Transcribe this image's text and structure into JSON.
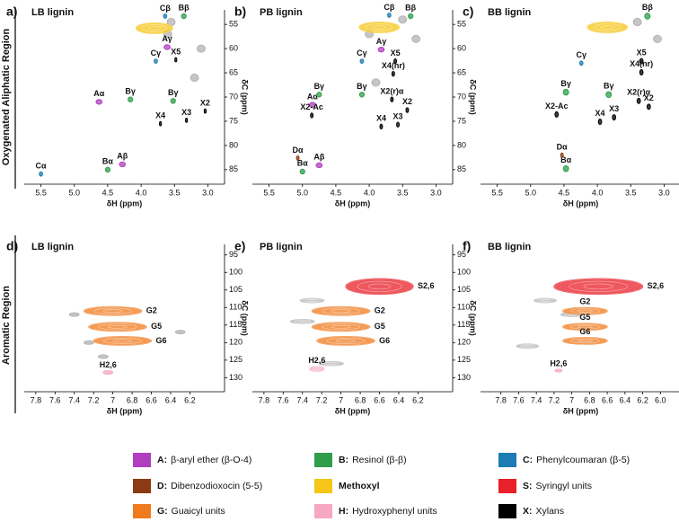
{
  "row_labels": [
    "Oxygenated Aliphatic Region",
    "Aromatic Region"
  ],
  "chart_data": [
    {
      "type": "scatter",
      "label": "a)",
      "title": "LB lignin",
      "xlabel": "δH (ppm)",
      "ylabel": "δC (ppm)",
      "xlim": [
        5.75,
        2.75
      ],
      "ylim": [
        52,
        88
      ],
      "xticks": [
        5.5,
        {
          "value": 5,
          "label": "5.0"
        },
        4.5,
        {
          "value": 4,
          "label": "4.0"
        },
        3.5,
        {
          "value": 3,
          "label": "3.0"
        }
      ],
      "yticks": [
        55,
        60,
        65,
        70,
        75,
        80,
        85
      ],
      "series": [
        {
          "color": "#b3b3b3",
          "x": [
            3.55,
            3.1,
            3.2,
            3.6
          ],
          "values": [
            54.5,
            60,
            66,
            57
          ],
          "extent": [
            0.12,
            1.5
          ]
        },
        {
          "color": "#f5c518",
          "x": [
            3.8
          ],
          "values": [
            55.8
          ],
          "extent": [
            0.55,
            2.2
          ]
        },
        {
          "color": "#b03fc0",
          "x": [
            4.63,
            3.61,
            4.28
          ],
          "values": [
            71.0,
            59.7,
            83.9
          ],
          "labels": [
            "Aα",
            "Aγ",
            "Aβ"
          ],
          "extent": [
            0.09,
            1.0
          ]
        },
        {
          "color": "#2e9e4a",
          "x": [
            3.36,
            4.16,
            3.52,
            4.5
          ],
          "values": [
            53.3,
            70.5,
            70.8,
            85.0
          ],
          "labels": [
            "Bβ",
            "Bγ",
            "Bγ",
            "Bα"
          ],
          "extent": [
            0.07,
            1.0
          ]
        },
        {
          "color": "#1f7bb5",
          "x": [
            3.64,
            3.78,
            5.5
          ],
          "values": [
            53.3,
            62.6,
            85.9
          ],
          "labels": [
            "Cβ",
            "Cγ",
            "Cα"
          ],
          "extent": [
            0.05,
            0.9
          ]
        },
        {
          "color": "#000000",
          "x": [
            3.48,
            3.04,
            3.32,
            3.71
          ],
          "values": [
            62.3,
            72.9,
            74.8,
            75.5
          ],
          "labels": [
            "X5",
            "X2",
            "X3",
            "X4"
          ],
          "extent": [
            0.03,
            0.9
          ]
        }
      ]
    },
    {
      "type": "scatter",
      "label": "b)",
      "title": "PB lignin",
      "xlabel": "δH (ppm)",
      "ylabel": "δC (ppm)",
      "xlim": [
        5.75,
        2.75
      ],
      "ylim": [
        52,
        88
      ],
      "xticks": [
        5.5,
        {
          "value": 5,
          "label": "5.0"
        },
        4.5,
        {
          "value": 4,
          "label": "4.0"
        },
        3.5,
        {
          "value": 3,
          "label": "3.0"
        }
      ],
      "yticks": [
        55,
        60,
        65,
        70,
        75,
        80,
        85
      ],
      "series": [
        {
          "color": "#b3b3b3",
          "x": [
            3.5,
            3.3,
            4.0,
            3.9
          ],
          "values": [
            54,
            58,
            57,
            67
          ],
          "extent": [
            0.12,
            1.5
          ]
        },
        {
          "color": "#f5c518",
          "x": [
            3.85
          ],
          "values": [
            55.6
          ],
          "extent": [
            0.6,
            2.2
          ]
        },
        {
          "color": "#b03fc0",
          "x": [
            4.85,
            3.82,
            4.75
          ],
          "values": [
            71.6,
            60.2,
            84.1
          ],
          "labels": [
            "Aα",
            "Aγ",
            "Aβ"
          ],
          "extent": [
            0.09,
            1.0
          ]
        },
        {
          "color": "#2e9e4a",
          "x": [
            3.38,
            4.75,
            4.11,
            5.0
          ],
          "values": [
            53.3,
            69.5,
            69.5,
            85.4
          ],
          "labels": [
            "Bβ",
            "Bγ",
            "Bγ",
            "Bα"
          ],
          "extent": [
            0.07,
            1.0
          ]
        },
        {
          "color": "#1f7bb5",
          "x": [
            3.7,
            4.11
          ],
          "values": [
            53.1,
            62.6
          ],
          "labels": [
            "Cβ",
            "Cγ"
          ],
          "extent": [
            0.05,
            0.9
          ]
        },
        {
          "color": "#8b3a12",
          "x": [
            5.07
          ],
          "values": [
            82.6
          ],
          "labels": [
            "Dα"
          ],
          "extent": [
            0.04,
            0.9
          ]
        },
        {
          "color": "#000000",
          "x": [
            3.61,
            3.64,
            3.66,
            4.86,
            3.43,
            3.57,
            3.82
          ],
          "values": [
            62.6,
            65.2,
            70.5,
            73.8,
            72.7,
            75.7,
            76.1
          ],
          "labels": [
            "X5",
            "X4(nr)",
            "X2(r)α",
            "X2-Ac",
            "X2",
            "X3",
            "X4"
          ],
          "extent": [
            0.04,
            1.0
          ]
        }
      ]
    },
    {
      "type": "scatter",
      "label": "c)",
      "title": "BB lignin",
      "xlabel": "δH (ppm)",
      "ylabel": "δC (ppm)",
      "xlim": [
        5.75,
        2.75
      ],
      "ylim": [
        52,
        88
      ],
      "xticks": [
        5.5,
        {
          "value": 5,
          "label": "5.0"
        },
        4.5,
        {
          "value": 4,
          "label": "4.0"
        },
        3.5,
        {
          "value": 3,
          "label": "3.0"
        }
      ],
      "yticks": [
        55,
        60,
        65,
        70,
        75,
        80,
        85
      ],
      "series": [
        {
          "color": "#b3b3b3",
          "x": [
            3.4,
            3.1
          ],
          "values": [
            54.5,
            58
          ],
          "extent": [
            0.12,
            1.5
          ]
        },
        {
          "color": "#f5c518",
          "x": [
            3.85
          ],
          "values": [
            55.6
          ],
          "extent": [
            0.6,
            2.2
          ]
        },
        {
          "color": "#2e9e4a",
          "x": [
            3.25,
            4.47,
            3.83,
            4.47
          ],
          "values": [
            53.3,
            69.0,
            69.5,
            84.8
          ],
          "labels": [
            "Bβ",
            "Bγ",
            "Bγ",
            "Bα"
          ],
          "extent": [
            0.08,
            1.2
          ]
        },
        {
          "color": "#1f7bb5",
          "x": [
            4.24
          ],
          "values": [
            63
          ],
          "labels": [
            "Cγ"
          ],
          "extent": [
            0.05,
            0.9
          ]
        },
        {
          "color": "#8b3a12",
          "x": [
            4.53
          ],
          "values": [
            82
          ],
          "labels": [
            "Dα"
          ],
          "extent": [
            0.04,
            0.9
          ]
        },
        {
          "color": "#000000",
          "x": [
            3.34,
            3.34,
            3.38,
            4.61,
            3.23,
            3.75,
            3.96
          ],
          "values": [
            62.6,
            64.9,
            70.8,
            73.6,
            72.0,
            74.2,
            75.1
          ],
          "labels": [
            "X5",
            "X4(nr)",
            "X2(r)α",
            "X2-Ac",
            "X2",
            "X3",
            "X4"
          ],
          "extent": [
            0.05,
            1.1
          ]
        }
      ]
    },
    {
      "type": "scatter",
      "label": "d)",
      "title": "LB lignin",
      "xlabel": "δH (ppm)",
      "ylabel": "δC (ppm)",
      "xlim": [
        7.92,
        5.84
      ],
      "ylim": [
        92,
        134
      ],
      "xticks": [
        7.8,
        7.6,
        7.4,
        7.2,
        7,
        6.8,
        6.6,
        6.4,
        6.2
      ],
      "yticks": [
        95,
        100,
        105,
        110,
        115,
        120,
        125,
        130
      ],
      "series": [
        {
          "color": "#b3b3b3",
          "x": [
            7.4,
            7.25,
            7.1,
            6.3
          ],
          "values": [
            112,
            120,
            124,
            117
          ],
          "extent": [
            0.1,
            1.0
          ]
        },
        {
          "color": "#f07a1e",
          "x": [
            7.0,
            6.95,
            6.9
          ],
          "values": [
            111,
            115.5,
            119.5
          ],
          "labels": [
            "G2",
            "G5",
            "G6"
          ],
          "extent": [
            0.6,
            2.5
          ]
        },
        {
          "color": "#f6a8c0",
          "x": [
            7.05
          ],
          "values": [
            128.5
          ],
          "labels": [
            "H2,6"
          ],
          "extent": [
            0.1,
            1.0
          ]
        }
      ]
    },
    {
      "type": "scatter",
      "label": "e)",
      "title": "PB lignin",
      "xlabel": "δH (ppm)",
      "ylabel": "δC (ppm)",
      "xlim": [
        7.92,
        5.84
      ],
      "ylim": [
        92,
        134
      ],
      "xticks": [
        7.8,
        7.6,
        7.4,
        7.2,
        7,
        6.8,
        6.6,
        6.4,
        6.2
      ],
      "yticks": [
        95,
        100,
        105,
        110,
        115,
        120,
        125,
        130
      ],
      "series": [
        {
          "color": "#b3b3b3",
          "x": [
            7.3,
            7.1,
            7.4
          ],
          "values": [
            108,
            126,
            114
          ],
          "extent": [
            0.25,
            1.2
          ]
        },
        {
          "color": "#e8202a",
          "x": [
            6.6
          ],
          "values": [
            104
          ],
          "labels": [
            "S2,6"
          ],
          "extent": [
            0.7,
            4.5
          ]
        },
        {
          "color": "#f07a1e",
          "x": [
            7.0,
            7.0,
            6.95
          ],
          "values": [
            111,
            115.5,
            119.5
          ],
          "labels": [
            "G2",
            "G5",
            "G6"
          ],
          "extent": [
            0.6,
            2.5
          ]
        },
        {
          "color": "#f6a8c0",
          "x": [
            7.25
          ],
          "values": [
            127.5
          ],
          "labels": [
            "H2,6"
          ],
          "extent": [
            0.15,
            1.5
          ]
        }
      ]
    },
    {
      "type": "scatter",
      "label": "f)",
      "title": "BB lignin",
      "xlabel": "δH (ppm)",
      "ylabel": "δC (ppm)",
      "xlim": [
        8.03,
        5.77
      ],
      "ylim": [
        92,
        134
      ],
      "xticks": [
        7.8,
        7.6,
        7.4,
        7.2,
        7,
        6.8,
        6.6,
        6.4,
        6.2,
        {
          "value": 6,
          "label": "6.0"
        }
      ],
      "yticks": [
        95,
        100,
        105,
        110,
        115,
        120,
        125,
        130
      ],
      "series": [
        {
          "color": "#b3b3b3",
          "x": [
            7.3,
            7.0,
            7.5
          ],
          "values": [
            108,
            112,
            121
          ],
          "extent": [
            0.25,
            1.2
          ]
        },
        {
          "color": "#e8202a",
          "x": [
            6.7
          ],
          "values": [
            104
          ],
          "labels": [
            "S2,6"
          ],
          "extent": [
            1.0,
            4.5
          ]
        },
        {
          "color": "#f07a1e",
          "x": [
            6.85,
            6.85,
            6.85
          ],
          "values": [
            111,
            115.5,
            119.5
          ],
          "labels": [
            "G2",
            "G5",
            "G6"
          ],
          "extent": [
            0.5,
            2.0
          ]
        },
        {
          "color": "#f6a8c0",
          "x": [
            7.15
          ],
          "values": [
            128
          ],
          "labels": [
            "H2,6"
          ],
          "extent": [
            0.08,
            0.8
          ]
        }
      ]
    }
  ],
  "legend": {
    "items": [
      {
        "key": "A:",
        "label": "β-aryl ether (β-O-4)",
        "color": "#b03fc0"
      },
      {
        "key": "B:",
        "label": "Resinol (β-β)",
        "color": "#2e9e4a"
      },
      {
        "key": "C:",
        "label": "Phenylcoumaran (β-5)",
        "color": "#1f7bb5"
      },
      {
        "key": "D:",
        "label": "Dibenzodioxocin (5-5)",
        "color": "#8b3a12"
      },
      {
        "key": "Methoxyl",
        "color": "#f5c518"
      },
      {
        "key": "S:",
        "label": "Syringyl units",
        "color": "#e8202a"
      },
      {
        "key": "G:",
        "label": "Guaicyl units",
        "color": "#f07a1e"
      },
      {
        "key": "H:",
        "label": "Hydroxyphenyl units",
        "color": "#f6a8c0"
      },
      {
        "key": "X:",
        "label": "Xylans",
        "color": "#000000"
      }
    ]
  }
}
